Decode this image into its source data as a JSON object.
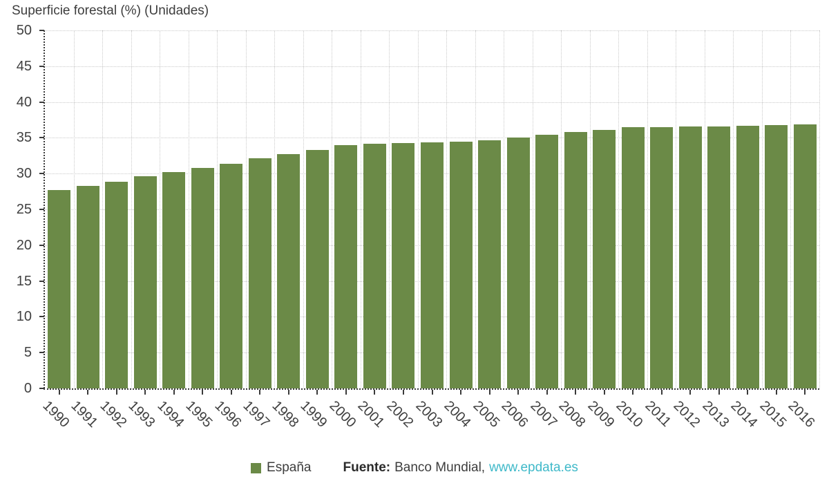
{
  "title": "Superficie forestal (%) (Unidades)",
  "chart_data": {
    "type": "bar",
    "title": "Superficie forestal (%) (Unidades)",
    "xlabel": "",
    "ylabel": "",
    "categories": [
      "1990",
      "1991",
      "1992",
      "1993",
      "1994",
      "1995",
      "1996",
      "1997",
      "1998",
      "1999",
      "2000",
      "2001",
      "2002",
      "2003",
      "2004",
      "2005",
      "2006",
      "2007",
      "2008",
      "2009",
      "2010",
      "2011",
      "2012",
      "2013",
      "2014",
      "2015",
      "2016"
    ],
    "series": [
      {
        "name": "España",
        "color": "#6b8a47",
        "values": [
          27.7,
          28.3,
          28.9,
          29.6,
          30.2,
          30.8,
          31.4,
          32.1,
          32.7,
          33.3,
          34.0,
          34.2,
          34.3,
          34.4,
          34.5,
          34.7,
          35.0,
          35.4,
          35.8,
          36.1,
          36.5,
          36.5,
          36.6,
          36.6,
          36.7,
          36.8,
          36.9
        ]
      }
    ],
    "ylim": [
      0,
      50
    ],
    "ytick_step": 5,
    "grid": true,
    "legend_position": "bottom"
  },
  "legend": {
    "items": [
      {
        "label": "España",
        "color": "#6b8a47"
      }
    ]
  },
  "source": {
    "label": "Fuente:",
    "publisher": "Banco Mundial,",
    "link": "www.epdata.es",
    "link_color": "#3fb9c9"
  },
  "colors": {
    "bar": "#6b8a47",
    "grid": "#c9c9c9",
    "axis": "#3a3a3a",
    "text": "#404040"
  }
}
